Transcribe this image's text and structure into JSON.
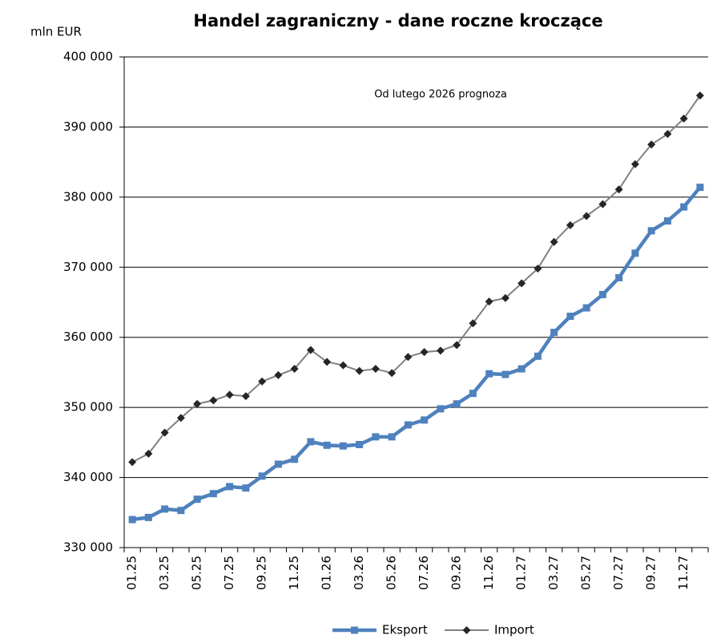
{
  "chart_data": {
    "type": "line",
    "title": "Handel zagraniczny - dane roczne kroczące",
    "y_label": "mln EUR",
    "annotation": "Od lutego 2026 prognoza",
    "categories": [
      "01.25",
      null,
      "03.25",
      null,
      "05.25",
      null,
      "07.25",
      null,
      "09.25",
      null,
      "11.25",
      null,
      "01.26",
      null,
      "03.26",
      null,
      "05.26",
      null,
      "07.26",
      null,
      "09.26",
      null,
      "11.26",
      null,
      "01.27",
      null,
      "03.27",
      null,
      "05.27",
      null,
      "07.27",
      null,
      "09.27",
      null,
      "11.27",
      null
    ],
    "series": [
      {
        "name": "Eksport",
        "color": "#4f81bd",
        "values": [
          334000,
          334300,
          335500,
          335300,
          336900,
          337700,
          338700,
          338500,
          340200,
          341900,
          342600,
          345100,
          344600,
          344500,
          344700,
          345800,
          345800,
          347500,
          348200,
          349800,
          350500,
          352000,
          354800,
          354700,
          355500,
          357300,
          360700,
          363000,
          364200,
          366100,
          368500,
          372000,
          375200,
          376600,
          378600,
          381400
        ]
      },
      {
        "name": "Import",
        "color": "#808080",
        "values": [
          342200,
          343400,
          346400,
          348500,
          350500,
          351000,
          351800,
          351600,
          353700,
          354600,
          355500,
          358200,
          356500,
          356000,
          355200,
          355500,
          354900,
          357200,
          357900,
          358100,
          358900,
          362000,
          365100,
          365600,
          367700,
          369800,
          373600,
          376000,
          377300,
          379000,
          381100,
          384700,
          387500,
          389000,
          391200,
          394500
        ]
      }
    ],
    "ylim": [
      330000,
      400000
    ],
    "yticks": [
      {
        "value": 330000,
        "label": "330 000"
      },
      {
        "value": 340000,
        "label": "340 000"
      },
      {
        "value": 350000,
        "label": "350 000"
      },
      {
        "value": 360000,
        "label": "360 000"
      },
      {
        "value": 370000,
        "label": "370 000"
      },
      {
        "value": 380000,
        "label": "380 000"
      },
      {
        "value": 390000,
        "label": "390 000"
      },
      {
        "value": 400000,
        "label": "400 000"
      }
    ],
    "grid": true,
    "legend": "bottom"
  }
}
